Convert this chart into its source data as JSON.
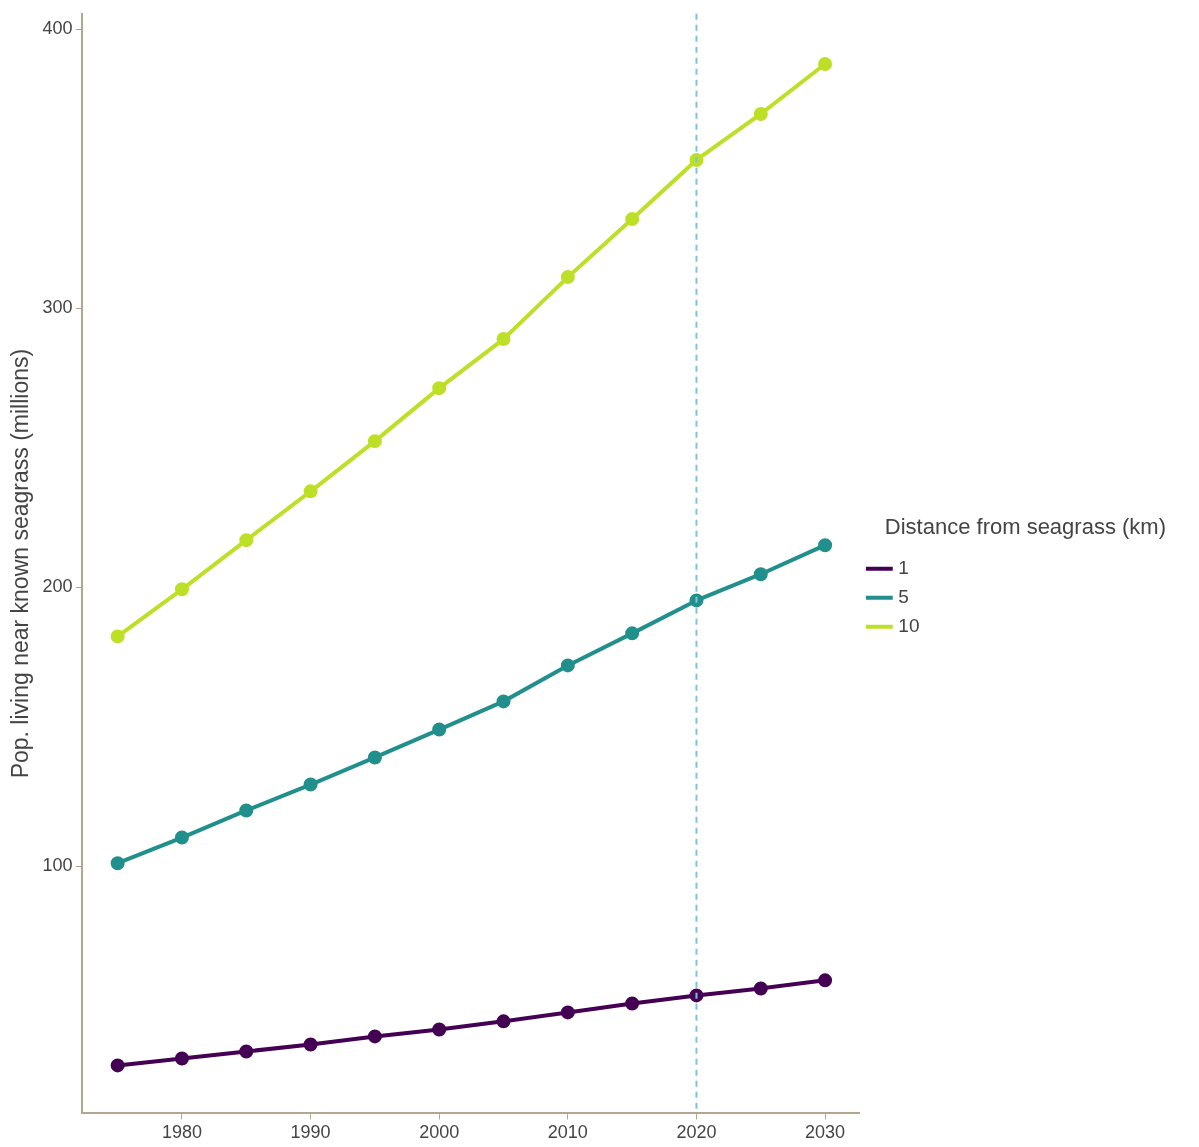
{
  "chart_data": {
    "type": "line",
    "ylabel": "Pop. living near known seagrass (millions)",
    "legend_title": "Distance from seagrass (km)",
    "x": [
      1975,
      1980,
      1985,
      1990,
      1995,
      2000,
      2005,
      2010,
      2015,
      2020,
      2025,
      2030
    ],
    "series": [
      {
        "name": "1",
        "color": "#440154",
        "values": [
          28.6,
          31.1,
          33.6,
          36.1,
          39.0,
          41.5,
          44.4,
          47.6,
          50.8,
          53.7,
          56.2,
          59.1
        ]
      },
      {
        "name": "5",
        "color": "#21908c",
        "values": [
          101.1,
          110.3,
          120.0,
          129.3,
          139.0,
          149.0,
          159.1,
          172.0,
          183.5,
          195.3,
          204.7,
          215.1
        ]
      },
      {
        "name": "10",
        "color": "#bddf26",
        "values": [
          182.4,
          199.3,
          216.9,
          234.4,
          252.4,
          271.4,
          289.0,
          311.2,
          332.0,
          353.2,
          369.7,
          387.6
        ]
      }
    ],
    "xlim": [
      1972.2,
      2032.7
    ],
    "xticks": [
      1980,
      1990,
      2000,
      2010,
      2020,
      2030
    ],
    "ylim": [
      11.4,
      405.6
    ],
    "yticks": [
      100,
      200,
      300,
      400
    ],
    "ref_lines": [
      {
        "axis": "x",
        "value": 2020,
        "color": "#7ec4d8",
        "line_style": "dashed"
      }
    ],
    "grid": false,
    "legend": "right",
    "marker": "circle",
    "line_style": "solid"
  }
}
